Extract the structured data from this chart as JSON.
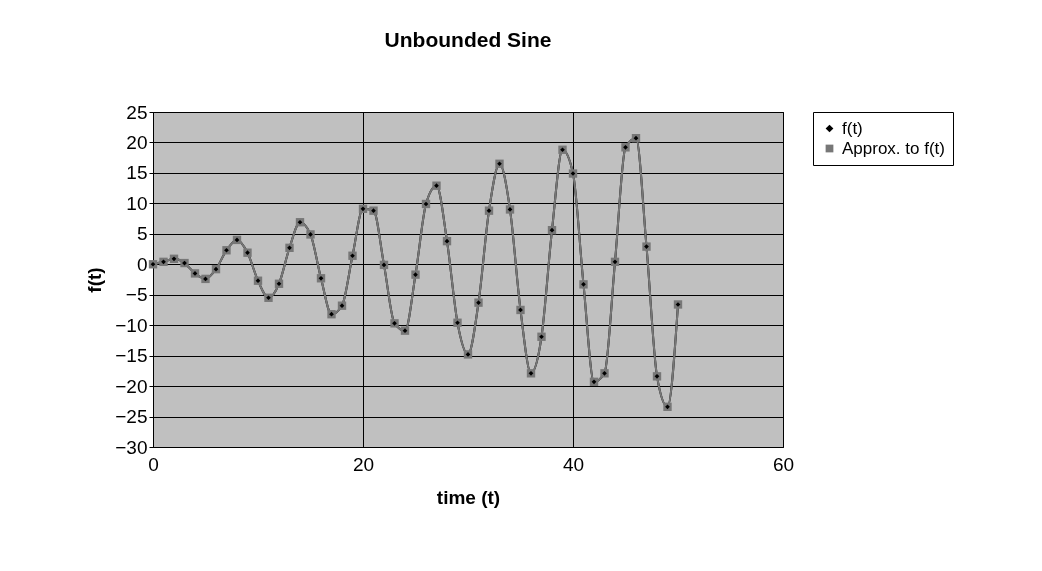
{
  "chart_data": {
    "type": "line",
    "title": "Unbounded Sine",
    "xlabel": "time (t)",
    "ylabel": "f(t)",
    "x": [
      0,
      1,
      2,
      3,
      4,
      5,
      6,
      7,
      8,
      9,
      10,
      11,
      12,
      13,
      14,
      15,
      16,
      17,
      18,
      19,
      20,
      21,
      22,
      23,
      24,
      25,
      26,
      27,
      28,
      29,
      30,
      31,
      32,
      33,
      34,
      35,
      36,
      37,
      38,
      39,
      40,
      41,
      42,
      43,
      44,
      45,
      46,
      47,
      48,
      49,
      50
    ],
    "series": [
      {
        "name": "f(t)",
        "color": "#000000",
        "marker": "diamond",
        "values": [
          0,
          0.4,
          0.9,
          0.2,
          -1.5,
          -2.4,
          -0.8,
          2.3,
          4,
          1.9,
          -2.7,
          -5.5,
          -3.2,
          2.7,
          6.9,
          4.9,
          -2.3,
          -8.2,
          -6.8,
          1.4,
          9.1,
          8.8,
          -0.1,
          -9.7,
          -10.9,
          -1.7,
          9.9,
          12.9,
          3.8,
          -9.6,
          -14.8,
          -6.3,
          8.8,
          16.5,
          9,
          -7.5,
          -17.9,
          -11.9,
          5.6,
          18.8,
          14.9,
          -3.3,
          -19.3,
          -17.9,
          0.4,
          19.2,
          20.7,
          2.9,
          -18.4,
          -23.4,
          -6.6
        ]
      },
      {
        "name": "Approx. to f(t)",
        "color": "#777777",
        "marker": "square",
        "values": [
          0,
          0.4,
          0.9,
          0.2,
          -1.5,
          -2.4,
          -0.8,
          2.3,
          4,
          1.9,
          -2.7,
          -5.5,
          -3.2,
          2.7,
          6.9,
          4.9,
          -2.3,
          -8.2,
          -6.8,
          1.4,
          9.1,
          8.8,
          -0.1,
          -9.7,
          -10.9,
          -1.7,
          9.9,
          12.9,
          3.8,
          -9.6,
          -14.8,
          -6.3,
          8.8,
          16.5,
          9,
          -7.5,
          -17.9,
          -11.9,
          5.6,
          18.8,
          14.9,
          -3.3,
          -19.3,
          -17.9,
          0.4,
          19.2,
          20.7,
          2.9,
          -18.4,
          -23.4,
          -6.6
        ]
      }
    ],
    "xlim": [
      0,
      60
    ],
    "xticks": [
      0,
      20,
      40,
      60
    ],
    "ylim": [
      -30,
      25
    ],
    "yticks": [
      -30,
      -25,
      -20,
      -15,
      -10,
      -5,
      0,
      5,
      10,
      15,
      20,
      25
    ],
    "grid": true,
    "legend": "right",
    "line_style": "solid"
  }
}
